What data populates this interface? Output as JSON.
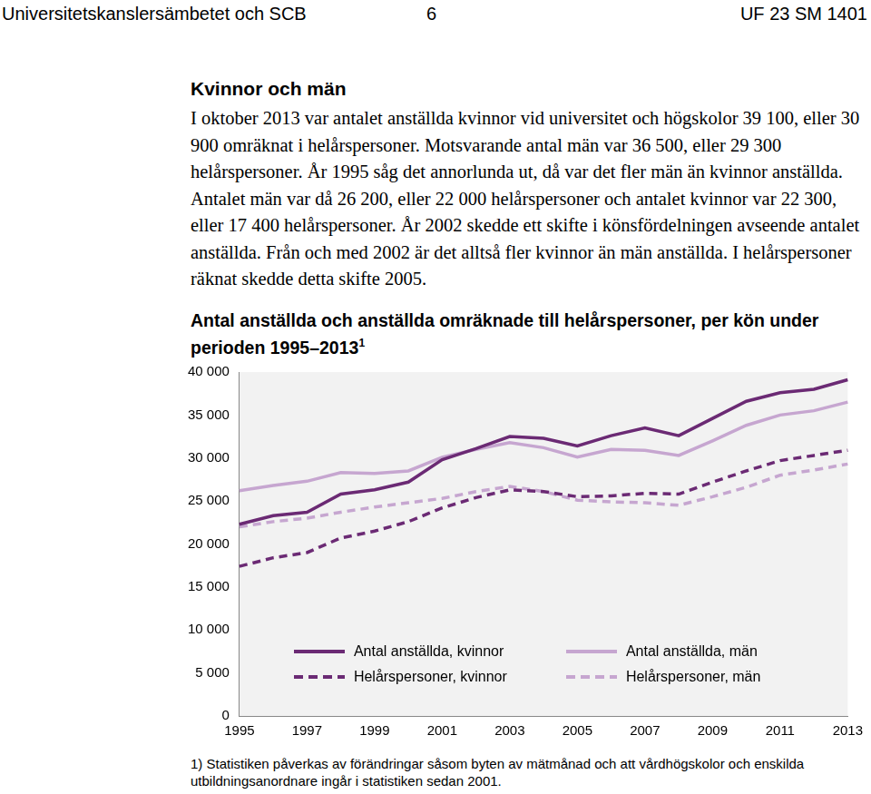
{
  "header": {
    "left": "Universitetskanslersämbetet och SCB",
    "page": "6",
    "right": "UF 23 SM 1401"
  },
  "section": {
    "heading": "Kvinnor och män",
    "paragraph": "I oktober 2013 var antalet anställda kvinnor vid universitet och högskolor 39 100, eller 30 900 omräknat i helårspersoner. Motsvarande antal män var 36 500, eller 29 300 helårspersoner. År 1995 såg det annorlunda ut, då var det fler män än kvinnor anställda. Antalet män var då 26 200, eller 22 000 helårspersoner och antalet kvinnor var 22 300, eller 17 400 helårspersoner. År 2002 skedde ett skifte i könsfördelningen avseende antalet anställda. Från och med 2002 är det alltså fler kvinnor än män anställda. I helårspersoner räknat skedde detta skifte 2005."
  },
  "chart_data": {
    "type": "line",
    "title": "Antal anställda och anställda omräknade till helårspersoner, per kön under perioden 1995–2013",
    "categories": [
      "1995",
      null,
      "1997",
      null,
      "1999",
      null,
      "2001",
      null,
      "2003",
      null,
      "2005",
      null,
      "2007",
      null,
      "2009",
      null,
      "2011",
      null,
      "2013"
    ],
    "series": [
      {
        "name": "Antal anställda, kvinnor",
        "color": "#6b2a74",
        "line_style": "solid",
        "values": [
          22300,
          23300,
          23700,
          25800,
          26300,
          27200,
          29800,
          31100,
          32500,
          32300,
          31400,
          32600,
          33500,
          32600,
          34600,
          36600,
          37600,
          38000,
          39100
        ]
      },
      {
        "name": "Antal anställda, män",
        "color": "#c6a6d0",
        "line_style": "solid",
        "values": [
          26200,
          26800,
          27300,
          28300,
          28200,
          28500,
          30100,
          31000,
          31800,
          31200,
          30100,
          31000,
          30900,
          30300,
          32000,
          33800,
          35000,
          35500,
          36500
        ]
      },
      {
        "name": "Helårspersoner, kvinnor",
        "color": "#6b2a74",
        "line_style": "dashed",
        "values": [
          17400,
          18400,
          19000,
          20700,
          21500,
          22600,
          24200,
          25400,
          26300,
          26100,
          25500,
          25600,
          25900,
          25800,
          27200,
          28500,
          29700,
          30300,
          30900
        ]
      },
      {
        "name": "Helårspersoner, män",
        "color": "#c6a6d0",
        "line_style": "dashed",
        "values": [
          22000,
          22600,
          23000,
          23700,
          24300,
          24800,
          25300,
          26100,
          26700,
          26100,
          25100,
          24900,
          24800,
          24500,
          25500,
          26600,
          28000,
          28600,
          29300
        ]
      }
    ],
    "ylim": [
      0,
      40000
    ],
    "yticks": [
      0,
      {
        "value": 5000,
        "label": "5 000"
      },
      {
        "value": 10000,
        "label": "10 000"
      },
      {
        "value": 15000,
        "label": "15 000"
      },
      {
        "value": 20000,
        "label": "20 000"
      },
      {
        "value": 25000,
        "label": "25 000"
      },
      {
        "value": 30000,
        "label": "30 000"
      },
      {
        "value": 35000,
        "label": "35 000"
      },
      {
        "value": 40000,
        "label": "40 000"
      }
    ],
    "grid": false,
    "legend": "bottom"
  },
  "footnote": {
    "mark": "1",
    "label": "1)",
    "text": "Statistiken påverkas av förändringar såsom byten av mätmånad och att vårdhögskolor och enskilda utbildningsanordnare ingår i statistiken sedan 2001."
  }
}
